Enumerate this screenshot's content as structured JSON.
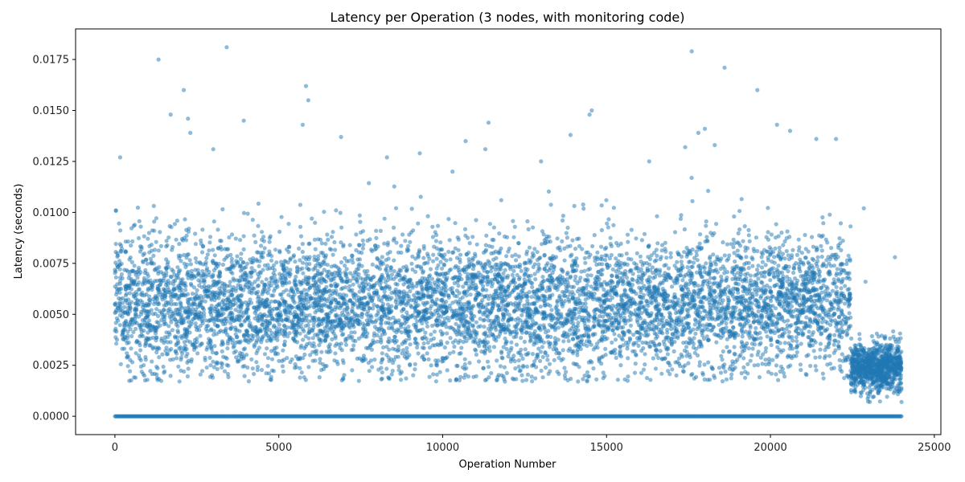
{
  "chart_data": {
    "type": "scatter",
    "title": "Latency per Operation (3 nodes, with monitoring code)",
    "xlabel": "Operation Number",
    "ylabel": "Latency (seconds)",
    "xlim": [
      -1200,
      25200
    ],
    "ylim": [
      -0.0009,
      0.019
    ],
    "x_ticks": [
      0,
      5000,
      10000,
      15000,
      20000,
      25000
    ],
    "x_tick_labels": [
      "0",
      "5000",
      "10000",
      "15000",
      "20000",
      "25000"
    ],
    "y_ticks": [
      0.0,
      0.0025,
      0.005,
      0.0075,
      0.01,
      0.0125,
      0.015,
      0.0175
    ],
    "y_tick_labels": [
      "0.0000",
      "0.0025",
      "0.0050",
      "0.0075",
      "0.0100",
      "0.0125",
      "0.0150",
      "0.0175"
    ],
    "grid": false,
    "legend": "none",
    "color": "#1f77b4",
    "series": [
      {
        "points_x": [
          0,
          30,
          60,
          100,
          160,
          250,
          400,
          600,
          820,
          1000,
          1200,
          1330,
          1500,
          1700,
          2100,
          2230,
          2300,
          2650,
          3000,
          3410,
          3500,
          3930,
          4500,
          4800,
          5000,
          5200,
          5650,
          5730,
          5830,
          5900,
          6300,
          6900,
          7000,
          7500,
          8000,
          8300,
          9000,
          9300,
          10000,
          10300,
          10700,
          11000,
          11300,
          11400,
          11900,
          12300,
          12600,
          13000,
          13500,
          13900,
          14300,
          14480,
          14550,
          15000,
          15500,
          16000,
          16300,
          16800,
          17400,
          17600,
          17800,
          18000,
          18300,
          18600,
          19000,
          19600,
          20000,
          20200,
          20600,
          21000,
          21400,
          21800,
          22000,
          22300,
          22450,
          22700,
          22850,
          22900,
          23000,
          23200,
          23400,
          23600,
          23800,
          23950,
          24000
        ],
        "points_y": [
          0.0055,
          0.0101,
          0.0048,
          0.0062,
          0.0127,
          0.0038,
          0.0071,
          0.0059,
          0.0045,
          0.0066,
          0.0091,
          0.0175,
          0.0052,
          0.0148,
          0.016,
          0.0146,
          0.0139,
          0.0057,
          0.0131,
          0.0181,
          0.0064,
          0.0145,
          0.0049,
          0.0068,
          0.0053,
          0.0041,
          0.0072,
          0.0143,
          0.0162,
          0.0155,
          0.0058,
          0.0137,
          0.0046,
          0.0063,
          0.0054,
          0.0127,
          0.0067,
          0.0129,
          0.0051,
          0.012,
          0.0135,
          0.0057,
          0.0131,
          0.0144,
          0.0017,
          0.0048,
          0.0069,
          0.0125,
          0.0056,
          0.0138,
          0.0061,
          0.0148,
          0.015,
          0.0053,
          0.0066,
          0.0049,
          0.0125,
          0.0058,
          0.0132,
          0.0179,
          0.0139,
          0.0141,
          0.0133,
          0.0171,
          0.0062,
          0.016,
          0.0054,
          0.0143,
          0.014,
          0.0067,
          0.0136,
          0.0059,
          0.0136,
          0.0046,
          0.0058,
          0.003,
          0.0102,
          0.0066,
          0.0022,
          0.0025,
          0.0019,
          0.0027,
          0.0078,
          0.0031,
          0.0007
        ],
        "baseline_y": 0.0
      }
    ]
  }
}
